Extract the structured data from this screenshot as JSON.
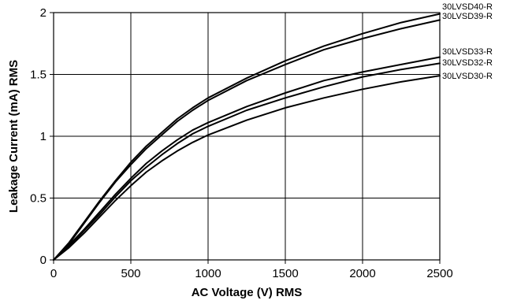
{
  "chart_data": {
    "type": "line",
    "title": "",
    "xlabel": "AC Voltage (V) RMS",
    "ylabel": "Leakage Current (mA) RMS",
    "xlim": [
      0,
      2500
    ],
    "ylim": [
      0,
      2
    ],
    "grid": true,
    "legend": "right-edge labels",
    "x_ticks": [
      "0",
      "500",
      "1000",
      "1500",
      "2000",
      "2500"
    ],
    "y_ticks": [
      "0",
      "0.5",
      "1",
      "1.5",
      "2"
    ],
    "x": [
      0,
      100,
      200,
      300,
      400,
      500,
      600,
      700,
      800,
      900,
      1000,
      1250,
      1500,
      1750,
      2000,
      2250,
      2500
    ],
    "series": [
      {
        "name": "30LVSD40-R",
        "values": [
          0,
          0.14,
          0.31,
          0.48,
          0.64,
          0.79,
          0.92,
          1.03,
          1.14,
          1.23,
          1.31,
          1.47,
          1.61,
          1.73,
          1.83,
          1.92,
          1.99
        ]
      },
      {
        "name": "30LVSD39-R",
        "values": [
          0,
          0.13,
          0.3,
          0.47,
          0.63,
          0.77,
          0.9,
          1.01,
          1.12,
          1.21,
          1.29,
          1.45,
          1.58,
          1.7,
          1.79,
          1.87,
          1.94
        ]
      },
      {
        "name": "30LVSD33-R",
        "values": [
          0,
          0.12,
          0.25,
          0.39,
          0.53,
          0.66,
          0.78,
          0.88,
          0.97,
          1.05,
          1.11,
          1.24,
          1.35,
          1.45,
          1.52,
          1.58,
          1.64
        ]
      },
      {
        "name": "30LVSD32-R",
        "values": [
          0,
          0.11,
          0.24,
          0.37,
          0.51,
          0.64,
          0.75,
          0.85,
          0.94,
          1.02,
          1.08,
          1.21,
          1.31,
          1.4,
          1.48,
          1.54,
          1.59
        ]
      },
      {
        "name": "30LVSD30-R",
        "values": [
          0,
          0.1,
          0.22,
          0.35,
          0.48,
          0.6,
          0.71,
          0.8,
          0.88,
          0.95,
          1.01,
          1.13,
          1.23,
          1.31,
          1.38,
          1.44,
          1.49
        ]
      }
    ]
  }
}
